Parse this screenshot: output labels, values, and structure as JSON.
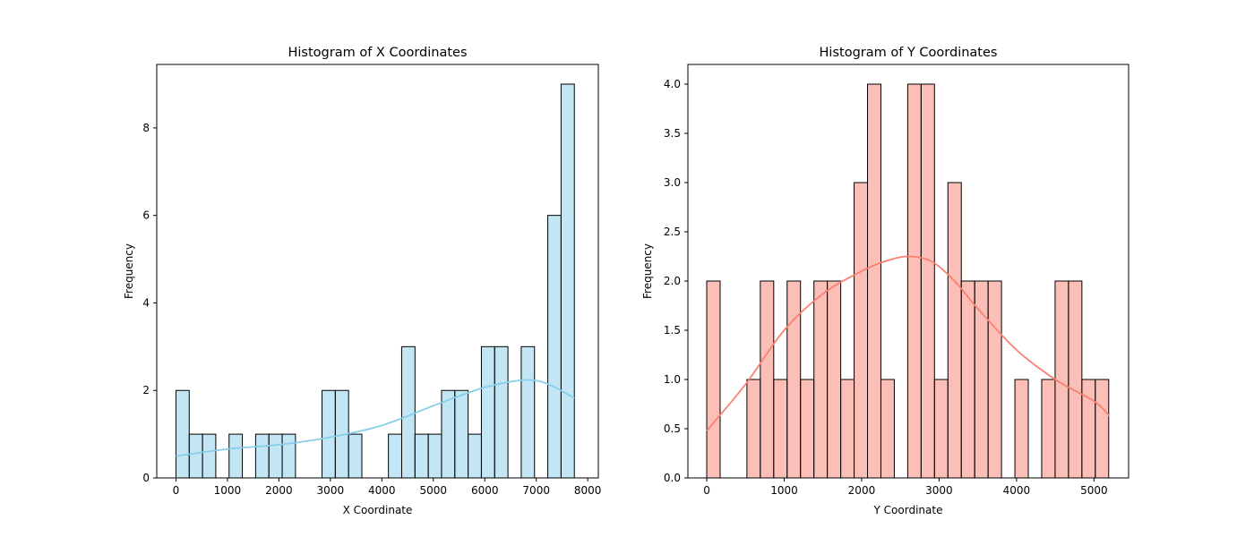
{
  "chart_data": [
    {
      "type": "bar",
      "title": "Histogram of X Coordinates",
      "xlabel": "X Coordinate",
      "ylabel": "Frequency",
      "xlim": [
        -373,
        8206
      ],
      "ylim": [
        0,
        9.45
      ],
      "xticks": [
        0,
        1000,
        2000,
        3000,
        4000,
        5000,
        6000,
        7000,
        8000
      ],
      "yticks": [
        0,
        2,
        4,
        6,
        8
      ],
      "bin_start": 0,
      "bin_width": 258,
      "values": [
        2,
        1,
        1,
        0,
        1,
        0,
        1,
        1,
        1,
        0,
        0,
        2,
        2,
        1,
        0,
        0,
        1,
        3,
        1,
        1,
        2,
        2,
        1,
        3,
        3,
        0,
        3,
        0,
        6,
        9
      ],
      "kde": {
        "x": [
          0,
          1000,
          2000,
          3000,
          4000,
          5000,
          5500,
          6000,
          6500,
          6800,
          7100,
          7400,
          7740
        ],
        "y": [
          0.5,
          0.66,
          0.76,
          0.93,
          1.2,
          1.65,
          1.87,
          2.07,
          2.2,
          2.24,
          2.2,
          2.05,
          1.82
        ]
      },
      "bar_fill": "#87ceeb",
      "bar_fill_opacity": 0.5,
      "line_color": "#87ceeb",
      "grid": false,
      "legend": "none"
    },
    {
      "type": "bar",
      "title": "Histogram of Y Coordinates",
      "xlabel": "Y Coordinate",
      "ylabel": "Frequency",
      "xlim": [
        -243,
        5447
      ],
      "ylim": [
        0,
        4.2
      ],
      "xticks": [
        0,
        1000,
        2000,
        3000,
        4000,
        5000
      ],
      "yticks": [
        0,
        0.5,
        1.0,
        1.5,
        2.0,
        2.5,
        3.0,
        3.5,
        4.0
      ],
      "ytick_labels": [
        "0.0",
        "0.5",
        "1.0",
        "1.5",
        "2.0",
        "2.5",
        "3.0",
        "3.5",
        "4.0"
      ],
      "bin_start": 0,
      "bin_width": 173,
      "values": [
        2,
        0,
        0,
        1,
        2,
        1,
        2,
        1,
        2,
        2,
        1,
        3,
        4,
        1,
        0,
        4,
        4,
        1,
        3,
        2,
        2,
        2,
        0,
        1,
        0,
        1,
        2,
        2,
        1,
        1
      ],
      "kde": {
        "x": [
          0,
          500,
          1000,
          1500,
          2000,
          2300,
          2600,
          2900,
          3200,
          3500,
          4000,
          4500,
          5000,
          5200
        ],
        "y": [
          0.48,
          0.95,
          1.5,
          1.87,
          2.1,
          2.2,
          2.25,
          2.2,
          2.0,
          1.72,
          1.3,
          1.0,
          0.78,
          0.63
        ]
      },
      "bar_fill": "#fa8072",
      "bar_fill_opacity": 0.5,
      "line_color": "#fa8072",
      "grid": false,
      "legend": "none"
    }
  ]
}
